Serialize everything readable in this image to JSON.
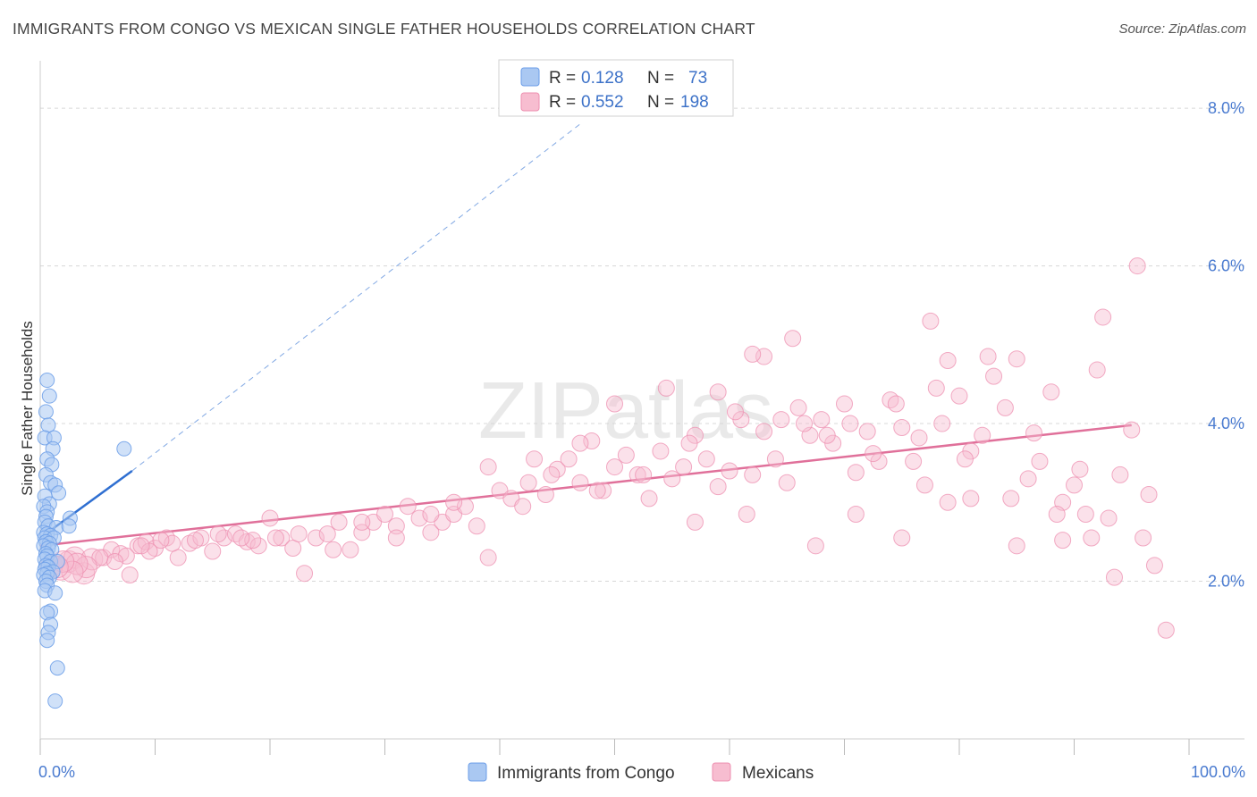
{
  "header": {
    "title": "IMMIGRANTS FROM CONGO VS MEXICAN SINGLE FATHER HOUSEHOLDS CORRELATION CHART",
    "source": "Source: ZipAtlas.com"
  },
  "watermark": "ZIPatlas",
  "legend": {
    "r_label": "R =",
    "n_label": "N =",
    "rows": [
      {
        "r": "0.128",
        "n": "73"
      },
      {
        "r": "0.552",
        "n": "198"
      }
    ]
  },
  "colors": {
    "congo": "#6b9de8",
    "congo_fill": "#aac8f2",
    "congo_line": "#2f6fd1",
    "mexican": "#ee8fb0",
    "mexican_fill": "#f7bdd0",
    "mexican_line": "#e0709a",
    "tick_text": "#4a7bd0",
    "grid": "#d8d8d8"
  },
  "chart_data": {
    "type": "scatter",
    "title": "IMMIGRANTS FROM CONGO VS MEXICAN SINGLE FATHER HOUSEHOLDS CORRELATION CHART",
    "xlabel": "",
    "ylabel": "Single Father Households",
    "xlim": [
      0,
      100
    ],
    "ylim": [
      0,
      8.5
    ],
    "x_tick_labels": [
      "0.0%",
      "100.0%"
    ],
    "y_ticks": [
      2.0,
      4.0,
      6.0,
      8.0
    ],
    "y_tick_labels": [
      "2.0%",
      "4.0%",
      "6.0%",
      "8.0%"
    ],
    "grid": true,
    "legend_position": "top-center",
    "series": [
      {
        "name": "Immigrants from Congo",
        "r": 0.128,
        "n": 73,
        "trend": {
          "x0": 0,
          "y0": 2.55,
          "x1": 8,
          "y1": 3.4,
          "dashed_to": {
            "x": 47,
            "y": 7.8
          }
        },
        "points": [
          [
            0.6,
            4.55
          ],
          [
            0.8,
            4.35
          ],
          [
            0.5,
            4.15
          ],
          [
            0.7,
            3.98
          ],
          [
            0.4,
            3.82
          ],
          [
            1.2,
            3.82
          ],
          [
            1.1,
            3.68
          ],
          [
            0.6,
            3.55
          ],
          [
            1.0,
            3.48
          ],
          [
            0.5,
            3.35
          ],
          [
            0.9,
            3.25
          ],
          [
            1.3,
            3.22
          ],
          [
            1.6,
            3.12
          ],
          [
            0.4,
            3.08
          ],
          [
            0.8,
            2.98
          ],
          [
            0.3,
            2.95
          ],
          [
            0.6,
            2.88
          ],
          [
            0.5,
            2.82
          ],
          [
            2.6,
            2.8
          ],
          [
            0.4,
            2.75
          ],
          [
            0.7,
            2.7
          ],
          [
            1.4,
            2.68
          ],
          [
            2.5,
            2.7
          ],
          [
            0.3,
            2.62
          ],
          [
            0.6,
            2.6
          ],
          [
            0.9,
            2.58
          ],
          [
            0.4,
            2.55
          ],
          [
            1.2,
            2.55
          ],
          [
            0.5,
            2.5
          ],
          [
            0.8,
            2.48
          ],
          [
            0.3,
            2.45
          ],
          [
            0.7,
            2.42
          ],
          [
            1.0,
            2.4
          ],
          [
            0.5,
            2.35
          ],
          [
            0.6,
            2.32
          ],
          [
            0.4,
            2.28
          ],
          [
            0.9,
            2.25
          ],
          [
            1.5,
            2.25
          ],
          [
            0.5,
            2.2
          ],
          [
            0.7,
            2.18
          ],
          [
            0.4,
            2.15
          ],
          [
            1.1,
            2.12
          ],
          [
            0.6,
            2.1
          ],
          [
            0.3,
            2.08
          ],
          [
            0.8,
            2.05
          ],
          [
            0.5,
            2.0
          ],
          [
            0.6,
            1.95
          ],
          [
            0.4,
            1.88
          ],
          [
            1.3,
            1.85
          ],
          [
            0.9,
            1.62
          ],
          [
            0.6,
            1.6
          ],
          [
            0.9,
            1.45
          ],
          [
            0.7,
            1.35
          ],
          [
            0.6,
            1.25
          ],
          [
            1.5,
            0.9
          ],
          [
            1.3,
            0.48
          ],
          [
            7.3,
            3.68
          ]
        ]
      },
      {
        "name": "Mexicans",
        "r": 0.552,
        "n": 198,
        "trend": {
          "x0": 0,
          "y0": 2.45,
          "x1": 95,
          "y1": 3.98
        },
        "points": [
          [
            1.0,
            2.2
          ],
          [
            1.8,
            2.15
          ],
          [
            2.5,
            2.25
          ],
          [
            3.0,
            2.3
          ],
          [
            3.8,
            2.1
          ],
          [
            4.5,
            2.28
          ],
          [
            5.5,
            2.3
          ],
          [
            6.2,
            2.4
          ],
          [
            7.0,
            2.35
          ],
          [
            7.8,
            2.08
          ],
          [
            8.5,
            2.45
          ],
          [
            9.2,
            2.5
          ],
          [
            10.0,
            2.42
          ],
          [
            11.0,
            2.55
          ],
          [
            12.0,
            2.3
          ],
          [
            13.0,
            2.48
          ],
          [
            14.0,
            2.55
          ],
          [
            15.0,
            2.38
          ],
          [
            16.0,
            2.55
          ],
          [
            17.0,
            2.6
          ],
          [
            18.0,
            2.5
          ],
          [
            19.0,
            2.45
          ],
          [
            20.0,
            2.8
          ],
          [
            21.0,
            2.55
          ],
          [
            22.0,
            2.42
          ],
          [
            23.0,
            2.1
          ],
          [
            24.0,
            2.55
          ],
          [
            25.0,
            2.6
          ],
          [
            26.0,
            2.75
          ],
          [
            27.0,
            2.4
          ],
          [
            28.0,
            2.62
          ],
          [
            29.0,
            2.75
          ],
          [
            30.0,
            2.85
          ],
          [
            31.0,
            2.7
          ],
          [
            32.0,
            2.95
          ],
          [
            33.0,
            2.8
          ],
          [
            34.0,
            2.62
          ],
          [
            35.0,
            2.75
          ],
          [
            36.0,
            2.85
          ],
          [
            37.0,
            2.95
          ],
          [
            38.0,
            2.7
          ],
          [
            39.0,
            2.3
          ],
          [
            40.0,
            3.15
          ],
          [
            41.0,
            3.05
          ],
          [
            42.0,
            2.95
          ],
          [
            43.0,
            3.55
          ],
          [
            44.0,
            3.1
          ],
          [
            45.0,
            3.42
          ],
          [
            46.0,
            3.55
          ],
          [
            47.0,
            3.25
          ],
          [
            48.0,
            3.78
          ],
          [
            49.0,
            3.15
          ],
          [
            50.0,
            3.45
          ],
          [
            51.0,
            3.6
          ],
          [
            52.0,
            3.35
          ],
          [
            53.0,
            3.05
          ],
          [
            54.0,
            3.65
          ],
          [
            55.0,
            3.3
          ],
          [
            56.0,
            3.45
          ],
          [
            57.0,
            3.85
          ],
          [
            58.0,
            3.55
          ],
          [
            59.0,
            3.2
          ],
          [
            60.0,
            3.4
          ],
          [
            61.0,
            4.05
          ],
          [
            62.0,
            3.35
          ],
          [
            63.0,
            3.9
          ],
          [
            64.0,
            3.55
          ],
          [
            65.0,
            3.25
          ],
          [
            66.0,
            4.2
          ],
          [
            67.0,
            3.85
          ],
          [
            68.0,
            4.05
          ],
          [
            69.0,
            3.75
          ],
          [
            70.0,
            4.25
          ],
          [
            71.0,
            3.38
          ],
          [
            72.0,
            3.9
          ],
          [
            73.0,
            3.52
          ],
          [
            74.0,
            4.3
          ],
          [
            75.0,
            3.95
          ],
          [
            76.0,
            3.52
          ],
          [
            77.0,
            3.22
          ],
          [
            78.0,
            4.45
          ],
          [
            79.0,
            3.0
          ],
          [
            80.0,
            4.35
          ],
          [
            81.0,
            3.65
          ],
          [
            82.0,
            3.85
          ],
          [
            83.0,
            4.6
          ],
          [
            84.0,
            4.2
          ],
          [
            85.0,
            4.82
          ],
          [
            86.0,
            3.3
          ],
          [
            87.0,
            3.52
          ],
          [
            88.0,
            4.4
          ],
          [
            89.0,
            3.0
          ],
          [
            90.0,
            3.22
          ],
          [
            91.0,
            2.85
          ],
          [
            92.0,
            4.68
          ],
          [
            93.0,
            2.8
          ],
          [
            94.0,
            3.35
          ],
          [
            95.0,
            3.92
          ],
          [
            96.0,
            2.55
          ],
          [
            97.0,
            2.2
          ],
          [
            98.0,
            1.38
          ],
          [
            95.5,
            6.0
          ],
          [
            92.5,
            5.35
          ],
          [
            77.5,
            5.3
          ],
          [
            65.5,
            5.08
          ],
          [
            63.0,
            4.85
          ],
          [
            62.0,
            4.88
          ],
          [
            82.5,
            4.85
          ],
          [
            79.0,
            4.8
          ],
          [
            59.0,
            4.4
          ],
          [
            54.5,
            4.45
          ],
          [
            50.0,
            4.25
          ],
          [
            47.0,
            3.75
          ],
          [
            42.5,
            3.25
          ],
          [
            39.0,
            3.45
          ],
          [
            36.0,
            3.0
          ],
          [
            34.0,
            2.85
          ],
          [
            31.0,
            2.55
          ],
          [
            28.0,
            2.75
          ],
          [
            25.5,
            2.4
          ],
          [
            22.5,
            2.6
          ],
          [
            20.5,
            2.55
          ],
          [
            18.5,
            2.52
          ],
          [
            17.5,
            2.55
          ],
          [
            15.5,
            2.6
          ],
          [
            13.5,
            2.52
          ],
          [
            11.5,
            2.48
          ],
          [
            10.5,
            2.52
          ],
          [
            9.5,
            2.38
          ],
          [
            8.8,
            2.45
          ],
          [
            7.5,
            2.32
          ],
          [
            6.5,
            2.25
          ],
          [
            5.2,
            2.3
          ],
          [
            4.0,
            2.18
          ],
          [
            3.2,
            2.22
          ],
          [
            2.8,
            2.12
          ],
          [
            2.0,
            2.25
          ],
          [
            1.5,
            2.18
          ],
          [
            44.5,
            3.35
          ],
          [
            48.5,
            3.15
          ],
          [
            52.5,
            3.35
          ],
          [
            56.5,
            3.75
          ],
          [
            60.5,
            4.15
          ],
          [
            64.5,
            4.05
          ],
          [
            68.5,
            3.85
          ],
          [
            72.5,
            3.62
          ],
          [
            76.5,
            3.82
          ],
          [
            80.5,
            3.55
          ],
          [
            84.5,
            3.05
          ],
          [
            88.5,
            2.85
          ],
          [
            90.5,
            3.42
          ],
          [
            66.5,
            4.0
          ],
          [
            70.5,
            4.0
          ],
          [
            74.5,
            4.25
          ],
          [
            78.5,
            4.0
          ],
          [
            86.5,
            3.88
          ],
          [
            57.0,
            2.75
          ],
          [
            61.5,
            2.85
          ],
          [
            67.5,
            2.45
          ],
          [
            71.0,
            2.85
          ],
          [
            75.0,
            2.55
          ],
          [
            81.0,
            3.05
          ],
          [
            85.0,
            2.45
          ],
          [
            89.0,
            2.52
          ],
          [
            91.5,
            2.55
          ],
          [
            93.5,
            2.05
          ],
          [
            96.5,
            3.1
          ]
        ]
      }
    ]
  },
  "bottom_legend": {
    "items": [
      "Immigrants from Congo",
      "Mexicans"
    ]
  }
}
